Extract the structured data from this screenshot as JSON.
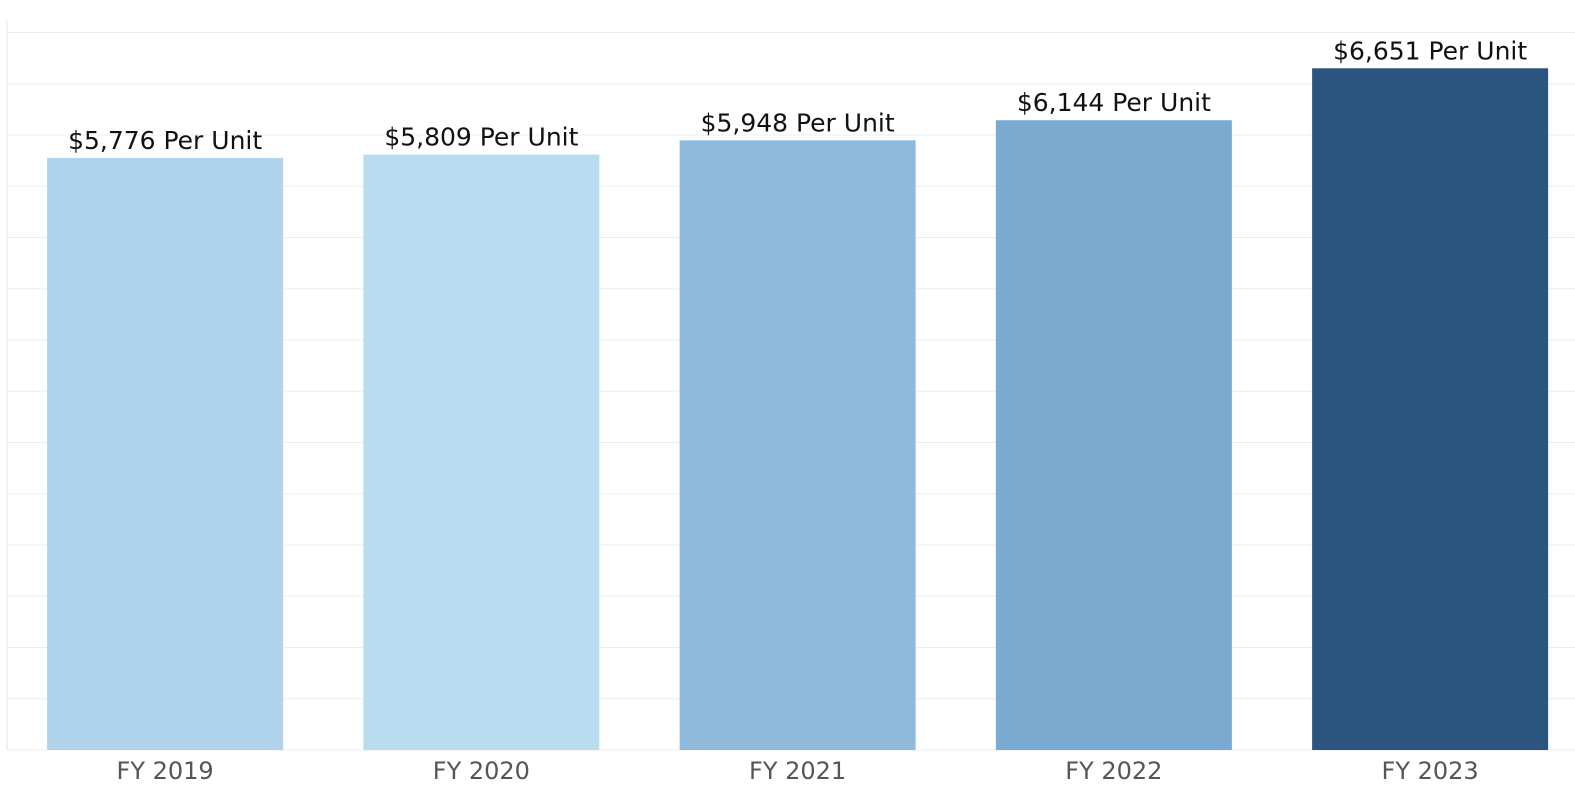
{
  "chart_data": {
    "type": "bar",
    "categories": [
      "FY 2019",
      "FY 2020",
      "FY 2021",
      "FY 2022",
      "FY 2023"
    ],
    "values": [
      5776,
      5809,
      5948,
      6144,
      6651
    ],
    "value_labels": [
      "$5,776 Per Unit",
      "$5,809 Per Unit",
      "$5,948 Per Unit",
      "$6,144 Per Unit",
      "$6,651 Per Unit"
    ],
    "colors": [
      "#b0d4ec",
      "#badcf0",
      "#8fbadb",
      "#7baad1",
      "#2b557f"
    ],
    "ylim": [
      0,
      7000
    ],
    "yticks": [
      0,
      500,
      1000,
      1500,
      2000,
      2500,
      3000,
      3500,
      4000,
      4500,
      5000,
      5500,
      6000,
      6500,
      7000
    ],
    "grid": true
  }
}
